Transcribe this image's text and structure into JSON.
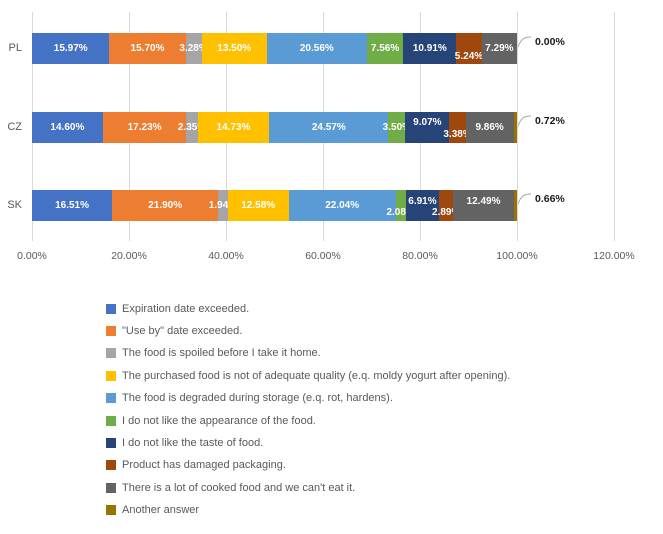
{
  "chart_data": {
    "type": "bar",
    "variant": "horizontal-stacked",
    "title": "",
    "categories": [
      "PL",
      "CZ",
      "SK"
    ],
    "series": [
      {
        "name": "Expiration date exceeded.",
        "color": "#4472C4",
        "values": [
          15.97,
          14.6,
          16.51
        ]
      },
      {
        "name": "\"Use by\" date exceeded.",
        "color": "#ED7D31",
        "values": [
          15.7,
          17.23,
          21.9
        ]
      },
      {
        "name": "The food is spoiled before I take it home.",
        "color": "#A5A5A5",
        "values": [
          3.28,
          2.35,
          1.94
        ]
      },
      {
        "name": "The purchased food is not of adequate quality (e.q. moldy yogurt after opening).",
        "color": "#FFC000",
        "values": [
          13.5,
          14.73,
          12.58
        ]
      },
      {
        "name": "The food is degraded during storage (e.q. rot, hardens).",
        "color": "#5B9BD5",
        "values": [
          20.56,
          24.57,
          22.04
        ]
      },
      {
        "name": "I do not like the appearance of the food.",
        "color": "#70AD47",
        "values": [
          7.56,
          3.5,
          2.08
        ]
      },
      {
        "name": "I do not like the taste of food.",
        "color": "#264478",
        "values": [
          10.91,
          9.07,
          6.91
        ]
      },
      {
        "name": "Product has damaged packaging.",
        "color": "#9E480E",
        "values": [
          5.24,
          3.38,
          2.89
        ]
      },
      {
        "name": "There is a lot of cooked food and we can't eat it.",
        "color": "#636363",
        "values": [
          7.29,
          9.86,
          12.49
        ]
      },
      {
        "name": "Another answer",
        "color": "#997300",
        "values": [
          0.0,
          0.72,
          0.66
        ]
      }
    ],
    "x_ticks": [
      "0.00%",
      "20.00%",
      "40.00%",
      "60.00%",
      "80.00%",
      "100.00%",
      "120.00%"
    ],
    "xlim": [
      0,
      120
    ],
    "grid": "vertical-only",
    "legend_position": "bottom-left",
    "data_label_format": "0.00%",
    "outside_end_labels": [
      "0.00%",
      "0.72%",
      "0.66%"
    ]
  },
  "colors": {
    "background": "#FFFFFF",
    "gridline": "#D9D9D9",
    "axis_text": "#595959",
    "category_text": "#595959",
    "legend_text": "#595959",
    "bar_label": "#FFFFFF",
    "callout_text": "#1A1A1A",
    "leader_line": "#A6A6A6"
  }
}
